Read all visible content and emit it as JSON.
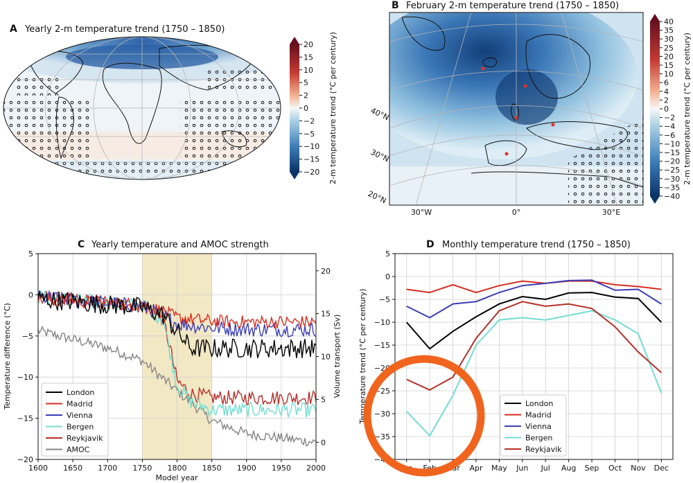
{
  "panels": {
    "A": {
      "letter": "A",
      "title": "Yearly 2-m temperature trend (1750 – 1850)",
      "colorbar_label": "2-m temperature trend (°C per century)",
      "colorbar_ticks": [
        "20",
        "15",
        "10",
        "5",
        "2",
        "0",
        "−2",
        "−5",
        "−10",
        "−15",
        "−20"
      ]
    },
    "B": {
      "letter": "B",
      "title": "February 2-m temperature trend (1750 – 1850)",
      "colorbar_label": "2-m temperature trend (°C per century)",
      "colorbar_ticks": [
        "40",
        "35",
        "30",
        "25",
        "20",
        "15",
        "10",
        "6",
        "4",
        "2",
        "0",
        "−2",
        "−4",
        "−6",
        "−10",
        "−15",
        "−20",
        "−25",
        "−30",
        "−35",
        "−40"
      ],
      "lat_labels": [
        "40°N",
        "30°N",
        "20°N"
      ],
      "lon_labels": [
        "30°W",
        "0°",
        "30°E"
      ]
    },
    "C": {
      "letter": "C",
      "title": "Yearly temperature and AMOC strength",
      "xlabel": "Model year",
      "ylabel": "Temperature difference (°C)",
      "ylabel2": "Volume transport (Sv)"
    },
    "D": {
      "letter": "D",
      "title": "Monthly temperature trend (1750 – 1850)",
      "ylabel": "Temperature trend (°C per century)"
    }
  },
  "chart_data": [
    {
      "type": "line",
      "panel": "C",
      "title": "Yearly temperature and AMOC strength",
      "xlabel": "Model year",
      "ylabel": "Temperature difference (°C)",
      "ylabel2": "Volume transport (Sv)",
      "xlim": [
        1600,
        2000
      ],
      "ylim": [
        -20,
        5
      ],
      "y2lim": [
        -2,
        22
      ],
      "xticks": [
        "1600",
        "1650",
        "1700",
        "1750",
        "1800",
        "1850",
        "1900",
        "1950",
        "2000"
      ],
      "yticks": [
        "5",
        "0",
        "−5",
        "−10",
        "−15",
        "−20"
      ],
      "y2ticks": [
        "20",
        "15",
        "10",
        "5",
        "0"
      ],
      "shaded_range": [
        1750,
        1850
      ],
      "shaded_color": "#f2e8c4",
      "legend": "lower-left",
      "series": [
        {
          "name": "London",
          "color": "#000000",
          "x": [
            1600,
            1700,
            1750,
            1780,
            1800,
            1820,
            1850,
            1900,
            1950,
            2000
          ],
          "y": [
            -0.5,
            -1.2,
            -1.5,
            -2.5,
            -4.5,
            -6.5,
            -6.5,
            -6.5,
            -6.5,
            -6.5
          ],
          "noise": 1.2
        },
        {
          "name": "Madrid",
          "color": "#d62d20",
          "x": [
            1600,
            1700,
            1750,
            1780,
            1800,
            1850,
            1900,
            2000
          ],
          "y": [
            -0.5,
            -1.0,
            -1.2,
            -2.0,
            -2.8,
            -3.2,
            -3.3,
            -3.3
          ],
          "noise": 0.8
        },
        {
          "name": "Vienna",
          "color": "#3b3db5",
          "x": [
            1600,
            1700,
            1750,
            1780,
            1800,
            1850,
            1900,
            2000
          ],
          "y": [
            -0.3,
            -1.0,
            -1.4,
            -2.5,
            -3.5,
            -4.0,
            -4.2,
            -4.2
          ],
          "noise": 0.9
        },
        {
          "name": "Bergen",
          "color": "#72ddd2",
          "x": [
            1600,
            1700,
            1750,
            1780,
            1790,
            1800,
            1820,
            1850,
            1900,
            2000
          ],
          "y": [
            -0.3,
            -1.0,
            -1.3,
            -3.0,
            -7.0,
            -11.0,
            -13.0,
            -14.0,
            -14.0,
            -14.0
          ],
          "noise": 0.9
        },
        {
          "name": "Reykjavik",
          "color": "#b5302a",
          "x": [
            1600,
            1700,
            1750,
            1780,
            1790,
            1800,
            1820,
            1850,
            1900,
            2000
          ],
          "y": [
            -0.3,
            -1.0,
            -1.3,
            -3.0,
            -6.5,
            -10.5,
            -12.0,
            -12.5,
            -12.5,
            -12.5
          ],
          "noise": 0.9
        },
        {
          "name": "AMOC",
          "color": "#858585",
          "axis": "right",
          "x": [
            1600,
            1700,
            1750,
            1800,
            1850,
            1900,
            2000
          ],
          "y": [
            13.0,
            11.0,
            9.5,
            6.0,
            2.5,
            1.0,
            0.0
          ],
          "noise": 0.6
        }
      ]
    },
    {
      "type": "line",
      "panel": "D",
      "title": "Monthly temperature trend (1750 – 1850)",
      "ylabel": "Temperature trend (°C per century)",
      "categories": [
        "Jan",
        "Feb",
        "Mar",
        "Apr",
        "May",
        "Jun",
        "Jul",
        "Aug",
        "Sep",
        "Oct",
        "Nov",
        "Dec"
      ],
      "ylim": [
        -40,
        5
      ],
      "yticks": [
        "5",
        "0",
        "−5",
        "−10",
        "−15",
        "−20",
        "−25",
        "−30",
        "−35",
        "−40"
      ],
      "legend": "lower-right",
      "series": [
        {
          "name": "London",
          "color": "#000000",
          "values": [
            -10,
            -15.8,
            -12,
            -8.8,
            -6,
            -4.4,
            -5,
            -3.6,
            -3.5,
            -4.5,
            -4.8,
            -10
          ]
        },
        {
          "name": "Madrid",
          "color": "#d62d20",
          "values": [
            -2.8,
            -3.5,
            -1.8,
            -3.5,
            -2,
            -1,
            -1.5,
            -1,
            -1,
            -1.8,
            -2.2,
            -2.8
          ]
        },
        {
          "name": "Vienna",
          "color": "#3b3db5",
          "values": [
            -6.5,
            -9,
            -6,
            -5.5,
            -3.5,
            -2,
            -1.5,
            -0.9,
            -0.8,
            -3,
            -2.8,
            -6
          ]
        },
        {
          "name": "Bergen",
          "color": "#72ddd2",
          "values": [
            -29.5,
            -34.8,
            -26,
            -15,
            -9.5,
            -9,
            -9.5,
            -8.5,
            -7.5,
            -9.5,
            -12.5,
            -25.5
          ]
        },
        {
          "name": "Reykjavik",
          "color": "#b5302a",
          "values": [
            -22.5,
            -24.8,
            -22,
            -13.5,
            -7.5,
            -5.5,
            -6.5,
            -6,
            -7,
            -11,
            -16.5,
            -21
          ]
        }
      ],
      "annotation": {
        "type": "circle",
        "color": "#f0641e",
        "around": [
          "Jan",
          "Feb",
          "Mar"
        ]
      }
    }
  ]
}
